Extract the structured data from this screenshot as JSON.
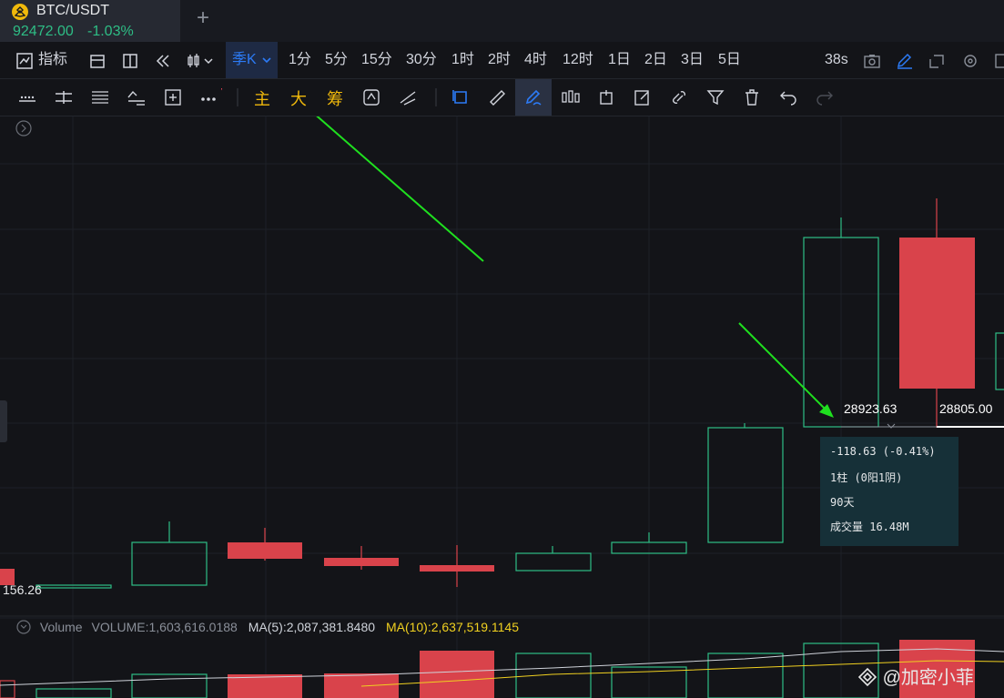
{
  "tab": {
    "pair": "BTC/USDT",
    "price": "92472.00",
    "change": "-1.03%"
  },
  "toolbar": {
    "indicators_label": "指标",
    "interval_selected": "季K",
    "intervals": [
      "1分",
      "5分",
      "15分",
      "30分",
      "1时",
      "2时",
      "4时",
      "12时",
      "1日",
      "2日",
      "3日",
      "5日"
    ],
    "countdown": "38s"
  },
  "drawing_tools": {
    "main_label": "主",
    "large_label": "大",
    "chip_label": "筹"
  },
  "volume_legend": {
    "label": "Volume",
    "volume": "VOLUME:1,603,616.0188",
    "ma5": "MA(5):2,087,381.8480",
    "ma10": "MA(10):2,637,519.1145"
  },
  "measure": {
    "start_price": "28923.63",
    "end_price": "28805.00",
    "change": "-118.63 (-0.41%)",
    "bars": "1柱 (0阳1阴)",
    "days": "90天",
    "volume": "成交量 16.48M"
  },
  "left_price_label": "156.26",
  "watermark": "@加密小菲",
  "colors": {
    "up": "#2ebd85",
    "down": "#f6465d",
    "accent": "#2c7bf6",
    "annotation_arrow": "#1fe01f"
  },
  "chart_data": {
    "type": "candlestick",
    "interval": "季K",
    "candles": [
      {
        "direction": "down"
      },
      {
        "direction": "up"
      },
      {
        "direction": "up"
      },
      {
        "direction": "down"
      },
      {
        "direction": "down"
      },
      {
        "direction": "down"
      },
      {
        "direction": "up"
      },
      {
        "direction": "up"
      },
      {
        "direction": "up"
      },
      {
        "direction": "up"
      },
      {
        "direction": "down"
      },
      {
        "direction": "up"
      }
    ],
    "volume_series": [
      "MA(5)",
      "MA(10)"
    ]
  }
}
